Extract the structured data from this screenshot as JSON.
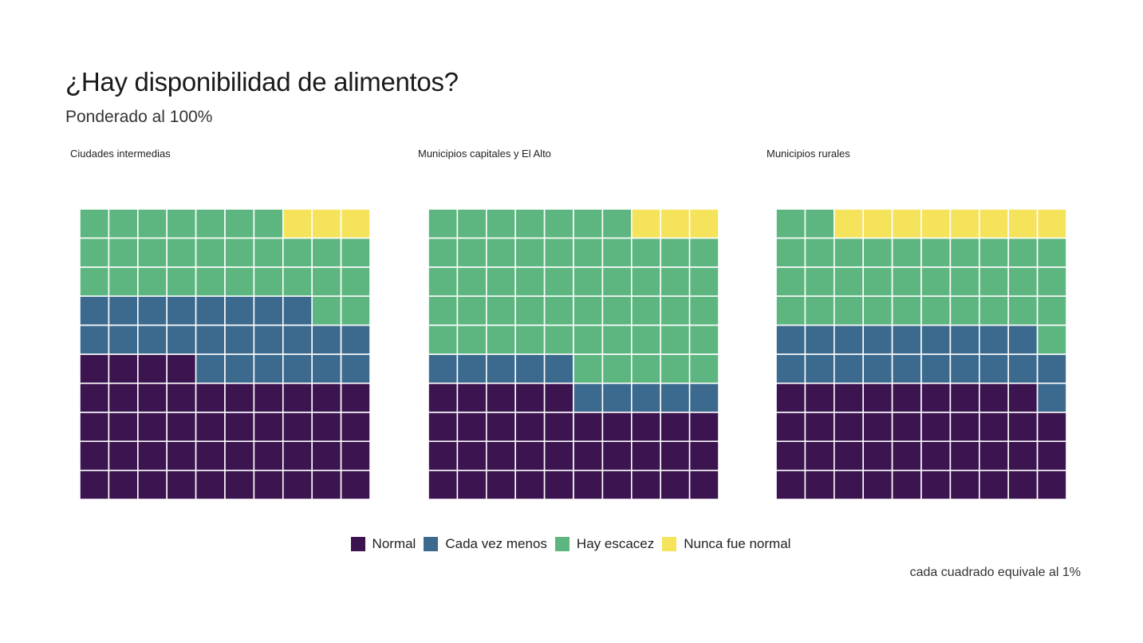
{
  "chart_data": [
    {
      "type": "waffle",
      "panel": "Ciudades intermedias",
      "grid": [
        10,
        10
      ],
      "fill_order": "row-wise from bottom-left",
      "series": [
        {
          "name": "Normal",
          "value": 44
        },
        {
          "name": "Cada vez menos",
          "value": 24
        },
        {
          "name": "Hay escacez",
          "value": 29
        },
        {
          "name": "Nunca fue normal",
          "value": 3
        }
      ]
    },
    {
      "type": "waffle",
      "panel": "Municipios capitales y El Alto",
      "grid": [
        10,
        10
      ],
      "fill_order": "row-wise from bottom-left",
      "series": [
        {
          "name": "Normal",
          "value": 35
        },
        {
          "name": "Cada vez menos",
          "value": 10
        },
        {
          "name": "Hay escacez",
          "value": 52
        },
        {
          "name": "Nunca fue normal",
          "value": 3
        }
      ]
    },
    {
      "type": "waffle",
      "panel": "Municipios rurales",
      "grid": [
        10,
        10
      ],
      "fill_order": "row-wise from bottom-left",
      "series": [
        {
          "name": "Normal",
          "value": 39
        },
        {
          "name": "Cada vez menos",
          "value": 20
        },
        {
          "name": "Hay escacez",
          "value": 33
        },
        {
          "name": "Nunca fue normal",
          "value": 8
        }
      ]
    }
  ],
  "title": "¿Hay disponibilidad de alimentos?",
  "subtitle": "Ponderado al 100%",
  "legend": [
    {
      "label": "Normal",
      "color": "#3b1450"
    },
    {
      "label": "Cada vez menos",
      "color": "#3b6a8e"
    },
    {
      "label": "Hay escacez",
      "color": "#5db67f"
    },
    {
      "label": "Nunca fue normal",
      "color": "#f5e35b"
    }
  ],
  "caption": "cada cuadrado equivale al 1%"
}
